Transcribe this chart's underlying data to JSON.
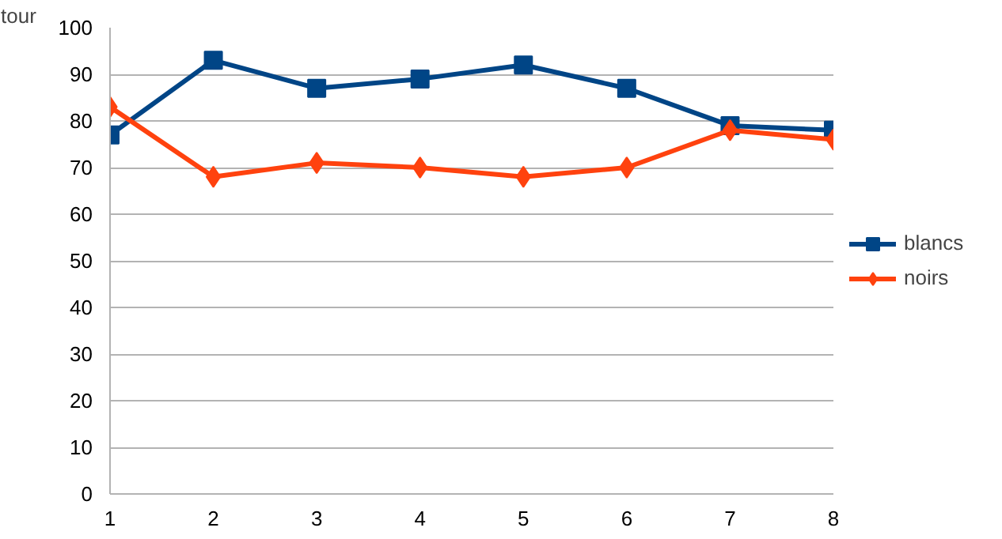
{
  "chart_data": {
    "type": "line",
    "ylabel": "tour",
    "x": [
      1,
      2,
      3,
      4,
      5,
      6,
      7,
      8
    ],
    "series": [
      {
        "name": "blancs",
        "color": "#004586",
        "marker": "square",
        "values": [
          77,
          93,
          87,
          89,
          92,
          87,
          79,
          78
        ]
      },
      {
        "name": "noirs",
        "color": "#ff420e",
        "marker": "diamond",
        "values": [
          83,
          68,
          71,
          70,
          68,
          70,
          78,
          76
        ]
      }
    ],
    "xlim": [
      1,
      8
    ],
    "xticks": [
      1,
      2,
      3,
      4,
      5,
      6,
      7,
      8
    ],
    "ylim": [
      0,
      100
    ],
    "yticks": [
      0,
      10,
      20,
      30,
      40,
      50,
      60,
      70,
      80,
      90,
      100
    ],
    "grid": "y",
    "legend": "right",
    "line_style": "solid"
  }
}
